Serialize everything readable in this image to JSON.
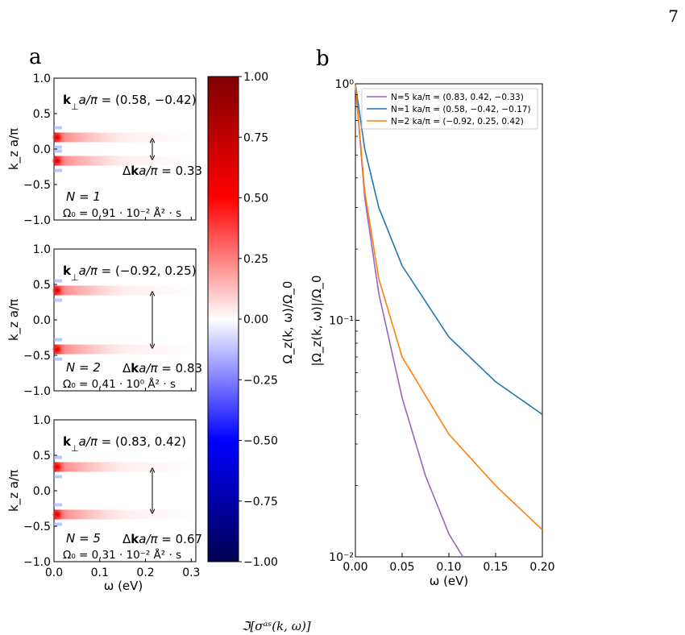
{
  "page_number": "7",
  "panel_a": {
    "label": "a",
    "x_axis_label": "ω (eV)",
    "x_ticks": [
      "0.0",
      "0.1",
      "0.2",
      "0.3"
    ],
    "y_axis_label": "k_z a/π",
    "y_ticks": [
      "1.0",
      "0.5",
      "0.0",
      "−0.5",
      "−1.0"
    ],
    "colorbar": {
      "label": "Ω_z(k, ω)/Ω_0",
      "ticks": [
        "1.00",
        "0.75",
        "0.50",
        "0.25",
        "0.00",
        "−0.25",
        "−0.50",
        "−0.75",
        "−1.00"
      ],
      "colors": {
        "positive": "#8b0000",
        "mid": "#ffffff",
        "negative": "#00005a"
      }
    },
    "subplots": [
      {
        "kperp_text": "(0.58, −0.42)",
        "dk_text": "= 0.33",
        "n_text": "N = 1",
        "omega_text": "Ω₀ = 0.91 · 10⁻² Å² · s",
        "peaks": [
          0.165,
          -0.165
        ]
      },
      {
        "kperp_text": "(−0.92, 0.25)",
        "dk_text": "= 0.83",
        "n_text": "N = 2",
        "omega_text": "Ω₀ = 0.41 · 10⁰ Å² · s",
        "peaks": [
          0.415,
          -0.415
        ]
      },
      {
        "kperp_text": "(0.83, 0.42)",
        "dk_text": "= 0.67",
        "n_text": "N = 5",
        "omega_text": "Ω₀ = 0.31 · 10⁻² Å² · s",
        "peaks": [
          0.335,
          -0.335
        ]
      }
    ]
  },
  "panel_b": {
    "label": "b",
    "y_axis_label": "|Ω_z(k, ω)|/Ω_0",
    "x_axis_label": "ω (eV)"
  },
  "chart_data": {
    "type": "line",
    "xlabel": "ω (eV)",
    "ylabel": "|Ω_z(k, ω)|/Ω_0",
    "xlim": [
      0.0,
      0.2
    ],
    "ylim": [
      0.01,
      1.0
    ],
    "yscale": "log",
    "x_ticks": [
      "0.00",
      "0.05",
      "0.10",
      "0.15",
      "0.20"
    ],
    "y_ticks": [
      "10⁰",
      "10⁻¹",
      "10⁻²"
    ],
    "legend_position": "top-right",
    "series": [
      {
        "name": "N=5 ka/π = (0.83, 0.42, −0.33)",
        "color": "#9467bd",
        "x": [
          0.0,
          0.01,
          0.025,
          0.05,
          0.075,
          0.1,
          0.115
        ],
        "y": [
          1.0,
          0.33,
          0.13,
          0.047,
          0.022,
          0.0125,
          0.01
        ]
      },
      {
        "name": "N=1 ka/π = (0.58, −0.42, −0.17)",
        "color": "#1f77b4",
        "x": [
          0.0,
          0.01,
          0.025,
          0.05,
          0.1,
          0.15,
          0.2
        ],
        "y": [
          1.0,
          0.53,
          0.3,
          0.17,
          0.085,
          0.055,
          0.04
        ]
      },
      {
        "name": "N=2 ka/π = (−0.92, 0.25, 0.42)",
        "color": "#ff7f0e",
        "x": [
          0.0,
          0.01,
          0.025,
          0.05,
          0.1,
          0.15,
          0.2
        ],
        "y": [
          1.0,
          0.35,
          0.15,
          0.07,
          0.033,
          0.02,
          0.013
        ]
      }
    ]
  },
  "footer_text": "ℑ[σᵃˢ(k, ω)]"
}
